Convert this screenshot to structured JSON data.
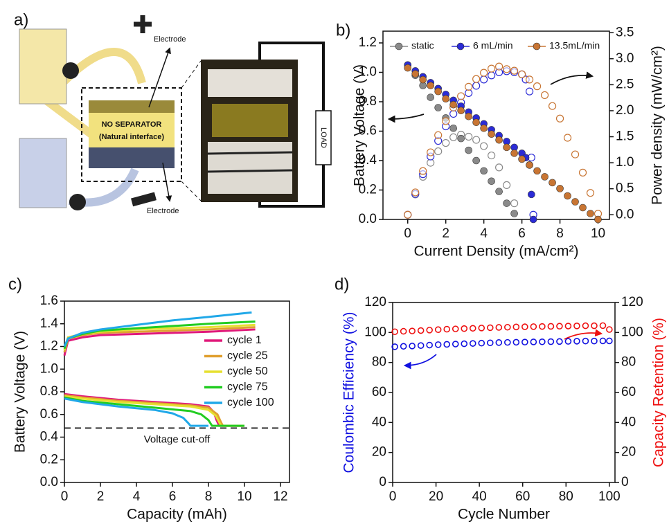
{
  "schematic": {
    "panel": "a)",
    "electrode_top": "Electrode",
    "separator": "NO SEPARATOR",
    "interface": "(Natural interface)",
    "electrode_bottom": "Electrode",
    "load": "LOAD"
  },
  "chart_data": [
    {
      "type": "line",
      "panel": "b)",
      "markers": true,
      "legend": "top",
      "xlabel": "Current Density (mA/cm²)",
      "ylabel": "Battery Voltage (V)",
      "y2label": "Power density (mW/cm²)",
      "xlim": [
        -1.3,
        10.6
      ],
      "ylim": [
        0,
        1.28
      ],
      "y2lim": [
        -0.09,
        3.53
      ],
      "xticks": [
        0,
        2,
        4,
        6,
        8,
        10
      ],
      "yticks": [
        {
          "value": 0,
          "label": "0.0"
        },
        0.2,
        0.4,
        0.6,
        0.8,
        {
          "value": 1,
          "label": "1.0"
        },
        1.2
      ],
      "y2ticks": [
        {
          "value": 0,
          "label": "0.0"
        },
        0.5,
        {
          "value": 1,
          "label": "1.0"
        },
        1.5,
        {
          "value": 2,
          "label": "2.0"
        },
        2.5,
        {
          "value": 3,
          "label": "3.0"
        },
        3.5
      ],
      "series": [
        {
          "name": "static",
          "color": "#8a8a8a",
          "x": [
            0,
            0.4,
            0.8,
            1.2,
            1.6,
            2.0,
            2.4,
            2.8,
            3.2,
            3.6,
            4.0,
            4.4,
            4.8,
            5.2,
            5.6
          ],
          "values": [
            1.05,
            0.98,
            0.91,
            0.83,
            0.76,
            0.69,
            0.62,
            0.55,
            0.47,
            0.4,
            0.33,
            0.26,
            0.19,
            0.11,
            0.04
          ],
          "y2_values": [
            0,
            0.39,
            0.73,
            1.0,
            1.22,
            1.38,
            1.49,
            1.54,
            1.5,
            1.44,
            1.32,
            1.14,
            0.91,
            0.57,
            0.22
          ]
        },
        {
          "name": "6 mL/min",
          "color": "#2b2bd6",
          "x": [
            0,
            0.4,
            0.8,
            1.2,
            1.6,
            2.0,
            2.4,
            2.8,
            3.2,
            3.6,
            4.0,
            4.4,
            4.8,
            5.2,
            5.6,
            6.0,
            6.2,
            6.4,
            6.5,
            6.6
          ],
          "values": [
            1.05,
            1.01,
            0.97,
            0.93,
            0.89,
            0.85,
            0.81,
            0.77,
            0.73,
            0.69,
            0.65,
            0.61,
            0.57,
            0.53,
            0.49,
            0.45,
            0.42,
            0.37,
            0.17,
            0.0
          ],
          "y2_values": [
            0,
            0.4,
            0.78,
            1.12,
            1.42,
            1.7,
            1.94,
            2.16,
            2.34,
            2.48,
            2.6,
            2.68,
            2.74,
            2.76,
            2.74,
            2.7,
            2.6,
            2.37,
            1.1,
            0.0
          ]
        },
        {
          "name": "13.5mL/min",
          "color": "#c87533",
          "x": [
            0,
            0.4,
            0.8,
            1.2,
            1.6,
            2.0,
            2.4,
            2.8,
            3.2,
            3.6,
            4.0,
            4.4,
            4.8,
            5.2,
            5.6,
            6.0,
            6.4,
            6.8,
            7.2,
            7.6,
            8.0,
            8.4,
            8.8,
            9.2,
            9.6,
            10.0
          ],
          "values": [
            1.03,
            0.99,
            0.95,
            0.91,
            0.87,
            0.82,
            0.78,
            0.74,
            0.7,
            0.66,
            0.62,
            0.58,
            0.54,
            0.49,
            0.45,
            0.41,
            0.37,
            0.33,
            0.29,
            0.25,
            0.21,
            0.16,
            0.12,
            0.08,
            0.04,
            0.0
          ],
          "y2_values": [
            0,
            0.43,
            0.84,
            1.2,
            1.53,
            1.8,
            2.06,
            2.28,
            2.46,
            2.61,
            2.73,
            2.81,
            2.85,
            2.8,
            2.77,
            2.7,
            2.6,
            2.47,
            2.3,
            2.09,
            1.85,
            1.48,
            1.16,
            0.81,
            0.42,
            0.02
          ]
        }
      ]
    },
    {
      "type": "line",
      "panel": "c)",
      "legend": "right",
      "xlabel": "Capacity (mAh)",
      "ylabel": "Battery Voltage (V)",
      "xlim": [
        0,
        12.5
      ],
      "ylim": [
        0,
        1.6
      ],
      "xticks": [
        0,
        2,
        4,
        6,
        8,
        10,
        12
      ],
      "yticks": [
        {
          "value": 0,
          "label": "0.0"
        },
        0.2,
        0.4,
        0.6,
        0.8,
        {
          "value": 1,
          "label": "1.0"
        },
        1.2,
        1.4,
        1.6
      ],
      "cutoff": {
        "value": 0.48,
        "label": "Voltage cut-off"
      },
      "series": [
        {
          "name": "cycle 1",
          "color": "#e0197a",
          "charge": {
            "x": [
              0,
              0.2,
              1,
              2,
              4,
              6,
              8,
              10.6
            ],
            "values": [
              1.12,
              1.25,
              1.28,
              1.3,
              1.31,
              1.32,
              1.33,
              1.35
            ]
          },
          "discharge": {
            "x": [
              0,
              1,
              3,
              5,
              7,
              8,
              8.3,
              8.45,
              8.6,
              10
            ],
            "values": [
              0.78,
              0.76,
              0.73,
              0.71,
              0.69,
              0.67,
              0.62,
              0.55,
              0.5,
              0.5
            ]
          }
        },
        {
          "name": "cycle 25",
          "color": "#e0a030",
          "charge": {
            "x": [
              0,
              0.2,
              1,
              2,
              4,
              6,
              8,
              10.6
            ],
            "values": [
              1.15,
              1.27,
              1.3,
              1.32,
              1.33,
              1.34,
              1.35,
              1.37
            ]
          },
          "discharge": {
            "x": [
              0,
              1,
              3,
              5,
              7,
              8,
              8.5,
              8.7,
              8.8,
              10
            ],
            "values": [
              0.77,
              0.75,
              0.72,
              0.7,
              0.68,
              0.66,
              0.6,
              0.53,
              0.5,
              0.5
            ]
          }
        },
        {
          "name": "cycle 50",
          "color": "#e6e030",
          "charge": {
            "x": [
              0,
              0.2,
              1,
              2,
              4,
              6,
              8,
              10.6
            ],
            "values": [
              1.17,
              1.28,
              1.31,
              1.33,
              1.35,
              1.36,
              1.37,
              1.39
            ]
          },
          "discharge": {
            "x": [
              0,
              1,
              3,
              5,
              7,
              8,
              8.4,
              8.6,
              8.7,
              10
            ],
            "values": [
              0.76,
              0.74,
              0.71,
              0.69,
              0.67,
              0.64,
              0.59,
              0.53,
              0.5,
              0.5
            ]
          }
        },
        {
          "name": "cycle 75",
          "color": "#22cc22",
          "charge": {
            "x": [
              0,
              0.2,
              1,
              2,
              4,
              6,
              8,
              10.6
            ],
            "values": [
              1.18,
              1.27,
              1.31,
              1.34,
              1.36,
              1.38,
              1.4,
              1.42
            ]
          },
          "discharge": {
            "x": [
              0,
              1,
              3,
              5,
              7,
              7.6,
              8.0,
              8.2,
              10
            ],
            "values": [
              0.75,
              0.72,
              0.69,
              0.66,
              0.63,
              0.6,
              0.55,
              0.5,
              0.5
            ]
          }
        },
        {
          "name": "cycle 100",
          "color": "#20a8e8",
          "charge": {
            "x": [
              0,
              0.2,
              1,
              2,
              4,
              6,
              8,
              10.4
            ],
            "values": [
              1.2,
              1.27,
              1.32,
              1.35,
              1.39,
              1.43,
              1.46,
              1.5
            ]
          },
          "discharge": {
            "x": [
              0,
              1,
              3,
              5,
              6,
              6.6,
              6.9,
              7.0,
              8
            ],
            "values": [
              0.74,
              0.71,
              0.67,
              0.64,
              0.61,
              0.57,
              0.52,
              0.5,
              0.5
            ]
          }
        }
      ]
    },
    {
      "type": "scatter",
      "panel": "d)",
      "axis_label_colors": true,
      "xlabel": "Cycle Number",
      "ylabel": "Coulombic Efficiency (%)",
      "y2label": "Capacity Retention (%)",
      "xlim": [
        0,
        102.6
      ],
      "ylim": [
        0,
        120
      ],
      "y2lim": [
        0,
        120
      ],
      "xticks": [
        0,
        20,
        40,
        60,
        80,
        100
      ],
      "yticks": [
        0,
        20,
        40,
        60,
        80,
        100,
        120
      ],
      "y2ticks": [
        0,
        20,
        40,
        60,
        80,
        100,
        120
      ],
      "series": [
        {
          "color": "#1010e0",
          "x": [
            1,
            5,
            9,
            13,
            17,
            21,
            25,
            29,
            33,
            37,
            41,
            45,
            49,
            53,
            57,
            61,
            65,
            69,
            73,
            77,
            81,
            85,
            89,
            93,
            97,
            100
          ],
          "values": [
            90.5,
            90.8,
            91.0,
            91.3,
            91.6,
            91.9,
            92.1,
            92.3,
            92.5,
            92.7,
            92.9,
            93.1,
            93.3,
            93.4,
            93.5,
            93.6,
            93.7,
            93.8,
            93.9,
            94.0,
            94.1,
            94.2,
            94.3,
            94.3,
            94.4,
            94.4
          ]
        },
        {
          "color": "#ee1010",
          "axis": "y2",
          "x": [
            1,
            5,
            9,
            13,
            17,
            21,
            25,
            29,
            33,
            37,
            41,
            45,
            49,
            53,
            57,
            61,
            65,
            69,
            73,
            77,
            81,
            85,
            89,
            93,
            97,
            100
          ],
          "values": [
            100.5,
            100.8,
            101.0,
            101.3,
            101.6,
            101.9,
            102.2,
            102.4,
            102.6,
            102.8,
            103.0,
            103.2,
            103.4,
            103.5,
            103.7,
            103.8,
            103.9,
            104.0,
            104.1,
            104.2,
            104.3,
            104.4,
            104.5,
            104.5,
            104.6,
            102.0
          ]
        }
      ]
    }
  ]
}
